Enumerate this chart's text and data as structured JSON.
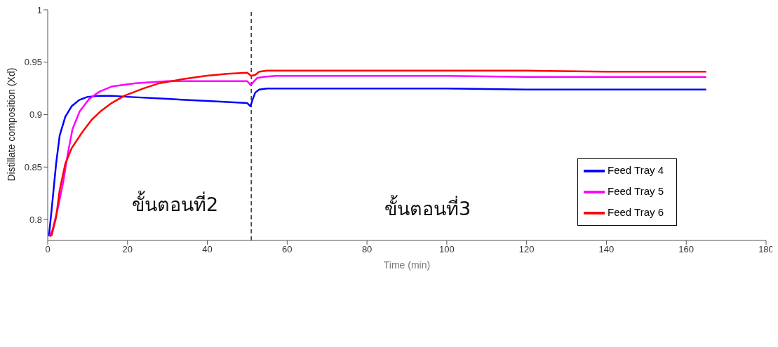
{
  "chart_data": {
    "type": "line",
    "xlabel": "Time (min)",
    "ylabel": "Distillate composition (Xd)",
    "xlim": [
      0,
      180
    ],
    "xticks": [
      0,
      20,
      40,
      60,
      80,
      100,
      120,
      140,
      160,
      180
    ],
    "ylim": [
      0.78,
      1
    ],
    "yticks": [
      0.8,
      0.85,
      0.9,
      0.95,
      1
    ],
    "grid": false,
    "legend": "right",
    "marker": "none",
    "line_style": "solid",
    "series": [
      {
        "name": "Feed Tray 4",
        "color": "#0000ff",
        "x": [
          0.3,
          1,
          2.1,
          3,
          4.4,
          6,
          7.9,
          10,
          13.2,
          16,
          20,
          30,
          40,
          50,
          50.8,
          51.3,
          52,
          53,
          55,
          60,
          80,
          100,
          120,
          140,
          165
        ],
        "values": [
          0.784,
          0.81,
          0.853,
          0.88,
          0.898,
          0.908,
          0.914,
          0.917,
          0.918,
          0.918,
          0.917,
          0.915,
          0.913,
          0.911,
          0.908,
          0.914,
          0.921,
          0.924,
          0.925,
          0.925,
          0.925,
          0.925,
          0.924,
          0.924,
          0.924
        ]
      },
      {
        "name": "Feed Tray 5",
        "color": "#ff00ff",
        "x": [
          0.5,
          1.2,
          2.5,
          3.9,
          5,
          6.2,
          8,
          10.4,
          13,
          16.2,
          22,
          30,
          40,
          50,
          50.9,
          51.5,
          52.5,
          54,
          57,
          60,
          80,
          100,
          120,
          140,
          165
        ],
        "values": [
          0.784,
          0.79,
          0.81,
          0.836,
          0.862,
          0.886,
          0.903,
          0.915,
          0.922,
          0.927,
          0.93,
          0.932,
          0.932,
          0.932,
          0.928,
          0.931,
          0.935,
          0.936,
          0.937,
          0.937,
          0.937,
          0.937,
          0.936,
          0.936,
          0.936
        ]
      },
      {
        "name": "Feed Tray 6",
        "color": "#ff0000",
        "x": [
          0.5,
          1,
          2.1,
          3,
          4.4,
          6,
          8.6,
          11,
          13.2,
          16,
          19.2,
          24,
          28,
          34,
          39.5,
          45,
          50,
          51,
          52,
          53,
          55,
          60,
          80,
          100,
          120,
          140,
          165
        ],
        "values": [
          0.784,
          0.785,
          0.802,
          0.828,
          0.853,
          0.868,
          0.883,
          0.895,
          0.903,
          0.911,
          0.918,
          0.925,
          0.93,
          0.934,
          0.937,
          0.939,
          0.94,
          0.937,
          0.938,
          0.941,
          0.942,
          0.942,
          0.942,
          0.942,
          0.942,
          0.941,
          0.941
        ]
      }
    ],
    "ref_lines": [
      {
        "axis": "x",
        "value": 51,
        "color": "#000000",
        "line_style": "dashed"
      }
    ],
    "annotations": [
      "ขั้นตอนที่2",
      "ขั้นตอนที่3"
    ]
  }
}
